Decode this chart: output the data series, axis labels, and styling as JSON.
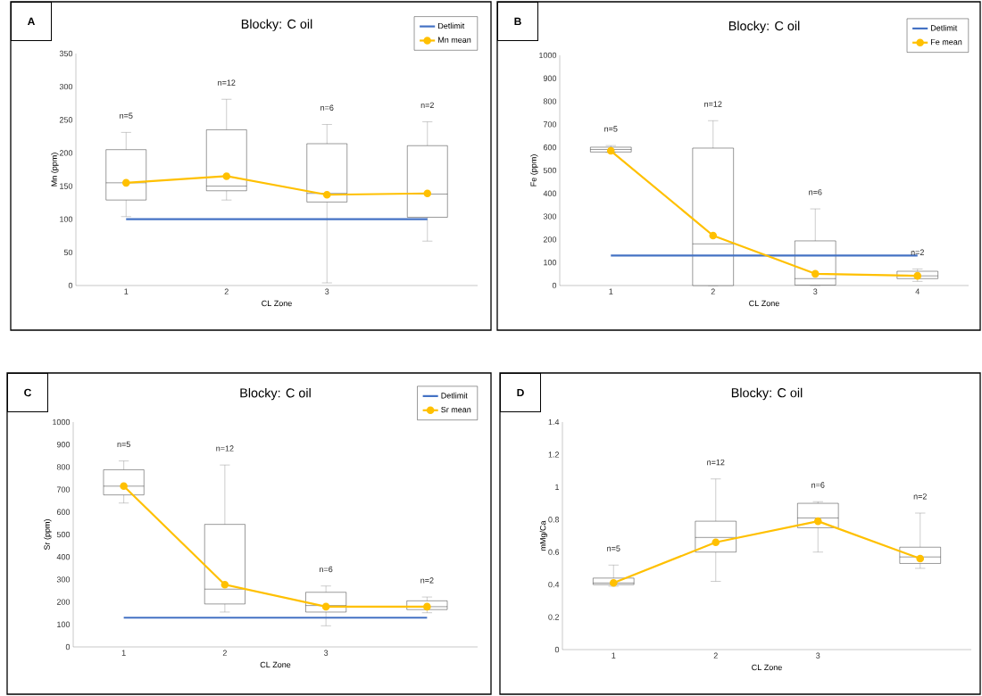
{
  "chart_data": [
    {
      "type": "box",
      "title": "Blocky: C oil",
      "xlabel": "CL Zone",
      "ylabel": "Mn (ppm)",
      "categories": [
        "1",
        "2",
        "3",
        null
      ],
      "ylim": [
        0,
        350
      ],
      "yticks": [
        0,
        50,
        100,
        150,
        200,
        250,
        300,
        350
      ],
      "legend": "top right",
      "boxes": [
        {
          "low": 104,
          "q1": 129,
          "median": 155,
          "q3": 205,
          "high": 231
        },
        {
          "low": 129,
          "q1": 143,
          "median": 150,
          "q3": 235,
          "high": 281
        },
        {
          "low": 4,
          "q1": 126,
          "median": 139,
          "q3": 214,
          "high": 243
        },
        {
          "low": 67,
          "q1": 103,
          "median": 138,
          "q3": 211,
          "high": 247
        }
      ],
      "series": [
        {
          "name": "Detlimit",
          "type": "line",
          "color": "#4472c4",
          "marker": "none",
          "values": [
            100,
            100,
            100,
            100
          ]
        },
        {
          "name": "Mn mean",
          "type": "line",
          "color": "#ffc000",
          "marker": "circle",
          "values": [
            155,
            165,
            137,
            139
          ]
        }
      ],
      "annotations": [
        "A",
        "n=5",
        "n=12",
        "n=6",
        "n=2"
      ]
    },
    {
      "type": "box",
      "title": "Blocky: C oil",
      "xlabel": "CL Zone",
      "ylabel": "Fe (ppm)",
      "categories": [
        "1",
        "2",
        "3",
        "4"
      ],
      "ylim": [
        0,
        1000
      ],
      "yticks": [
        0,
        100,
        200,
        300,
        400,
        500,
        600,
        700,
        800,
        900,
        1000
      ],
      "legend": "top right",
      "boxes": [
        {
          "low": 578,
          "q1": 580,
          "median": 591,
          "q3": 601,
          "high": 608
        },
        {
          "low": 0,
          "q1": 0,
          "median": 181,
          "q3": 597,
          "high": 716
        },
        {
          "low": 0,
          "q1": 2,
          "median": 30,
          "q3": 194,
          "high": 333
        },
        {
          "low": 18,
          "q1": 30,
          "median": 42,
          "q3": 62,
          "high": 72
        }
      ],
      "series": [
        {
          "name": "Detlimit",
          "type": "line",
          "color": "#4472c4",
          "marker": "none",
          "values": [
            130,
            130,
            130,
            130
          ]
        },
        {
          "name": "Fe mean",
          "type": "line",
          "color": "#ffc000",
          "marker": "circle",
          "values": [
            585,
            217,
            51,
            42
          ]
        }
      ],
      "annotations": [
        "B",
        "n=5",
        "n=12",
        "n=6",
        "n=2"
      ]
    },
    {
      "type": "box",
      "title": "Blocky: C oil",
      "xlabel": "CL Zone",
      "ylabel": "Sr (ppm)",
      "categories": [
        "1",
        "2",
        "3",
        null
      ],
      "ylim": [
        0,
        1000
      ],
      "yticks": [
        0,
        100,
        200,
        300,
        400,
        500,
        600,
        700,
        800,
        900,
        1000
      ],
      "legend": "top right",
      "boxes": [
        {
          "low": 640,
          "q1": 676,
          "median": 715,
          "q3": 788,
          "high": 827
        },
        {
          "low": 155,
          "q1": 191,
          "median": 257,
          "q3": 545,
          "high": 809
        },
        {
          "low": 94,
          "q1": 155,
          "median": 184,
          "q3": 243,
          "high": 271
        },
        {
          "low": 152,
          "q1": 166,
          "median": 179,
          "q3": 205,
          "high": 222
        }
      ],
      "series": [
        {
          "name": "Detlimit",
          "type": "line",
          "color": "#4472c4",
          "marker": "none",
          "values": [
            130,
            130,
            130,
            130
          ]
        },
        {
          "name": "Sr mean",
          "type": "line",
          "color": "#ffc000",
          "marker": "circle",
          "values": [
            715,
            277,
            179,
            179
          ]
        }
      ],
      "annotations": [
        "C",
        "n=5",
        "n=12",
        "n=6",
        "n=2"
      ]
    },
    {
      "type": "box",
      "title": "Blocky: C oil",
      "xlabel": "CL Zone",
      "ylabel": "mMg/Ca",
      "categories": [
        "1",
        "2",
        "3",
        null
      ],
      "ylim": [
        0,
        1.4
      ],
      "yticks": [
        0,
        0.2,
        0.4,
        0.6,
        0.8,
        1,
        1.2,
        1.4
      ],
      "boxes": [
        {
          "low": 0.39,
          "q1": 0.4,
          "median": 0.41,
          "q3": 0.44,
          "high": 0.52
        },
        {
          "low": 0.42,
          "q1": 0.6,
          "median": 0.69,
          "q3": 0.79,
          "high": 1.05
        },
        {
          "low": 0.6,
          "q1": 0.75,
          "median": 0.81,
          "q3": 0.9,
          "high": 0.91
        },
        {
          "low": 0.5,
          "q1": 0.53,
          "median": 0.57,
          "q3": 0.63,
          "high": 0.84
        }
      ],
      "series": [
        {
          "type": "line",
          "color": "#ffc000",
          "marker": "circle",
          "values": [
            0.41,
            0.66,
            0.79,
            0.56
          ]
        }
      ],
      "annotations": [
        "D",
        "n=5",
        "n=12",
        "n=6",
        "n=2"
      ]
    }
  ]
}
